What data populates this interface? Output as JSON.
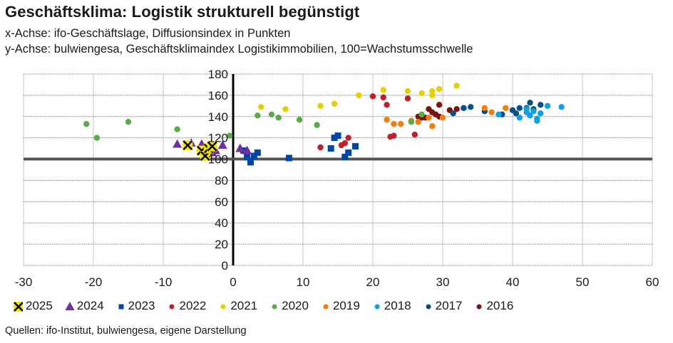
{
  "chart_data": {
    "type": "scatter",
    "title": "Geschäftsklima: Logistik strukturell begünstigt",
    "subtitle_x": "x-Achse: ifo-Geschäftslage, Diffusionsindex in Punkten",
    "subtitle_y": "y-Achse: bulwiengesa, Geschäftsklimaindex Logistikimmobilien, 100=Wachstumsschwelle",
    "source": "Quellen: ifo-Institut, bulwiengesa, eigene Darstellung",
    "xlim": [
      -30,
      60
    ],
    "ylim": [
      0,
      180
    ],
    "xticks": [
      "-30",
      "-20",
      "-10",
      "0",
      "10",
      "20",
      "30",
      "40",
      "50",
      "60"
    ],
    "yticks": [
      "0",
      "20",
      "40",
      "60",
      "80",
      "100",
      "120",
      "140",
      "160",
      "180"
    ],
    "grid": true,
    "reference_line_y": 100,
    "legend_position": "bottom",
    "series": [
      {
        "name": "2025",
        "marker": "x",
        "color": "#f5e400",
        "points": [
          [
            -6.5,
            113
          ],
          [
            -4.5,
            108
          ],
          [
            -4,
            103
          ],
          [
            -3.5,
            110
          ],
          [
            -3,
            112
          ]
        ]
      },
      {
        "name": "2024",
        "marker": "triangle",
        "color": "#7030a0",
        "points": [
          [
            -8,
            114
          ],
          [
            -6,
            115
          ],
          [
            -4.5,
            114
          ],
          [
            -4,
            110
          ],
          [
            -3,
            106
          ],
          [
            -2.5,
            108
          ],
          [
            -1.5,
            113
          ],
          [
            1,
            110
          ],
          [
            2,
            108
          ]
        ]
      },
      {
        "name": "2023",
        "marker": "square",
        "color": "#0046a5",
        "points": [
          [
            1.5,
            108
          ],
          [
            2,
            102
          ],
          [
            2.5,
            97
          ],
          [
            3,
            103
          ],
          [
            3.5,
            106
          ],
          [
            8,
            101
          ],
          [
            14,
            110
          ],
          [
            14.5,
            120
          ],
          [
            15,
            122
          ],
          [
            16,
            102
          ],
          [
            16.5,
            106
          ],
          [
            17.5,
            112
          ]
        ]
      },
      {
        "name": "2022",
        "marker": "circle",
        "color": "#c0202a",
        "points": [
          [
            12.5,
            111
          ],
          [
            15.5,
            113
          ],
          [
            16,
            115
          ],
          [
            16.5,
            120
          ],
          [
            20,
            159
          ],
          [
            21.5,
            158
          ],
          [
            22,
            151
          ],
          [
            22.5,
            121
          ],
          [
            23,
            122
          ],
          [
            26,
            123
          ],
          [
            25,
            157
          ]
        ]
      },
      {
        "name": "2021",
        "marker": "circle",
        "color": "#e8d000",
        "points": [
          [
            4,
            149
          ],
          [
            7.5,
            147
          ],
          [
            12.5,
            150
          ],
          [
            14.5,
            152
          ],
          [
            18,
            160
          ],
          [
            21.5,
            165
          ],
          [
            25,
            164
          ],
          [
            27,
            162
          ],
          [
            28.5,
            164
          ],
          [
            28.5,
            160
          ],
          [
            29.5,
            166
          ],
          [
            32,
            169
          ]
        ]
      },
      {
        "name": "2020",
        "marker": "circle",
        "color": "#5aaa4c",
        "points": [
          [
            -21,
            133
          ],
          [
            -19.5,
            120
          ],
          [
            -15,
            135
          ],
          [
            -8,
            128
          ],
          [
            -0.5,
            122
          ],
          [
            3.5,
            141
          ],
          [
            5.5,
            142
          ],
          [
            6.5,
            139
          ],
          [
            9.5,
            137
          ],
          [
            12,
            132
          ],
          [
            27,
            142
          ],
          [
            25.5,
            135
          ]
        ]
      },
      {
        "name": "2019",
        "marker": "circle",
        "color": "#f07e10",
        "points": [
          [
            22,
            137
          ],
          [
            23,
            133
          ],
          [
            24,
            133
          ],
          [
            25.5,
            136
          ],
          [
            26.5,
            135
          ],
          [
            28,
            139
          ],
          [
            28.5,
            131
          ],
          [
            30,
            139
          ],
          [
            36,
            148
          ],
          [
            37,
            144
          ],
          [
            39,
            148
          ]
        ]
      },
      {
        "name": "2018",
        "marker": "circle",
        "color": "#0ea0e0",
        "points": [
          [
            38,
            142
          ],
          [
            41,
            139
          ],
          [
            42,
            144
          ],
          [
            42,
            147
          ],
          [
            42.5,
            141
          ],
          [
            43,
            145
          ],
          [
            43.5,
            138
          ],
          [
            43.5,
            136
          ],
          [
            44,
            143
          ],
          [
            45,
            150
          ],
          [
            47,
            149
          ]
        ]
      },
      {
        "name": "2017",
        "marker": "circle",
        "color": "#0a5080",
        "points": [
          [
            31.5,
            143
          ],
          [
            33,
            148
          ],
          [
            34,
            149
          ],
          [
            36,
            145
          ],
          [
            38.5,
            142
          ],
          [
            40,
            146
          ],
          [
            40.5,
            143
          ],
          [
            41,
            148
          ],
          [
            42,
            148
          ],
          [
            42.5,
            153
          ],
          [
            43,
            147
          ],
          [
            44,
            151
          ]
        ]
      },
      {
        "name": "2016",
        "marker": "circle",
        "color": "#7a1410",
        "points": [
          [
            26.5,
            140
          ],
          [
            27,
            141
          ],
          [
            27.5,
            139
          ],
          [
            28,
            147
          ],
          [
            28.5,
            144
          ],
          [
            29,
            142
          ],
          [
            29.5,
            140
          ],
          [
            29.5,
            151
          ],
          [
            31,
            146
          ],
          [
            32,
            147
          ],
          [
            33,
            148
          ],
          [
            27,
            139
          ]
        ]
      }
    ]
  }
}
